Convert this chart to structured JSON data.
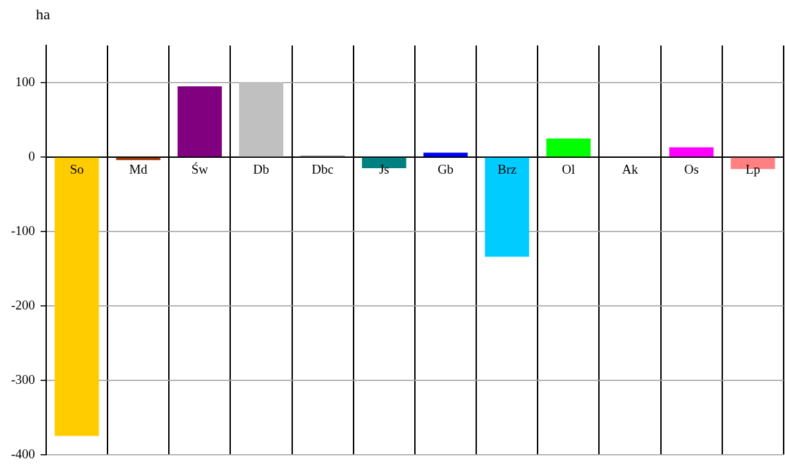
{
  "chart_data": {
    "type": "bar",
    "ylabel": "ha",
    "categories": [
      "So",
      "Md",
      "Św",
      "Db",
      "Dbc",
      "Js",
      "Gb",
      "Brz",
      "Ol",
      "Ak",
      "Os",
      "Lp"
    ],
    "values": [
      -375,
      -4,
      95,
      101,
      2,
      -15,
      6,
      -134,
      25,
      0,
      13,
      -16
    ],
    "colors": [
      "#ffcc00",
      "#993300",
      "#800080",
      "#c0c0c0",
      "#808080",
      "#008080",
      "#0000ff",
      "#00ccff",
      "#00ff00",
      "#000000",
      "#ff00ff",
      "#ff8080"
    ],
    "ylim": [
      -400,
      150
    ],
    "yticks": [
      -400,
      -300,
      -200,
      -100,
      0,
      100
    ],
    "grid": true,
    "legend": false
  }
}
